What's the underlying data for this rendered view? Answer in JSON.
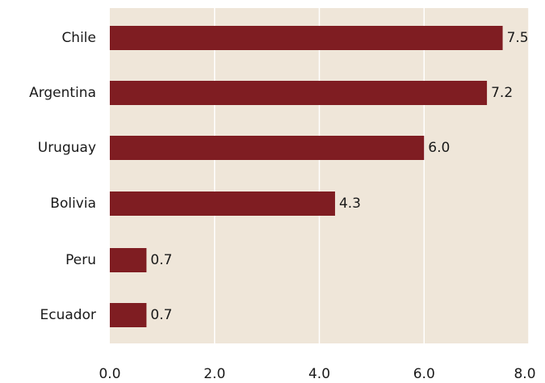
{
  "chart_data": {
    "type": "bar",
    "orientation": "horizontal",
    "title": "",
    "xlabel": "",
    "ylabel": "",
    "categories": [
      "Chile",
      "Argentina",
      "Uruguay",
      "Bolivia",
      "Peru",
      "Ecuador"
    ],
    "values": [
      7.5,
      7.2,
      6.0,
      4.3,
      0.7,
      0.7
    ],
    "value_labels": [
      "7.5",
      "7.2",
      "6.0",
      "4.3",
      "0.7",
      "0.7"
    ],
    "xlim": [
      0,
      8
    ],
    "x_ticks": [
      0,
      2,
      4,
      6,
      8
    ],
    "x_tick_labels": [
      "0.0",
      "2.0",
      "4.0",
      "6.0",
      "8.0"
    ],
    "grid": "vertical",
    "legend": "none",
    "colors": {
      "bar": "#7f1d22",
      "plot_background": "#efe6d9",
      "gridline": "#ffffff",
      "text": "#1a1a1a"
    }
  }
}
